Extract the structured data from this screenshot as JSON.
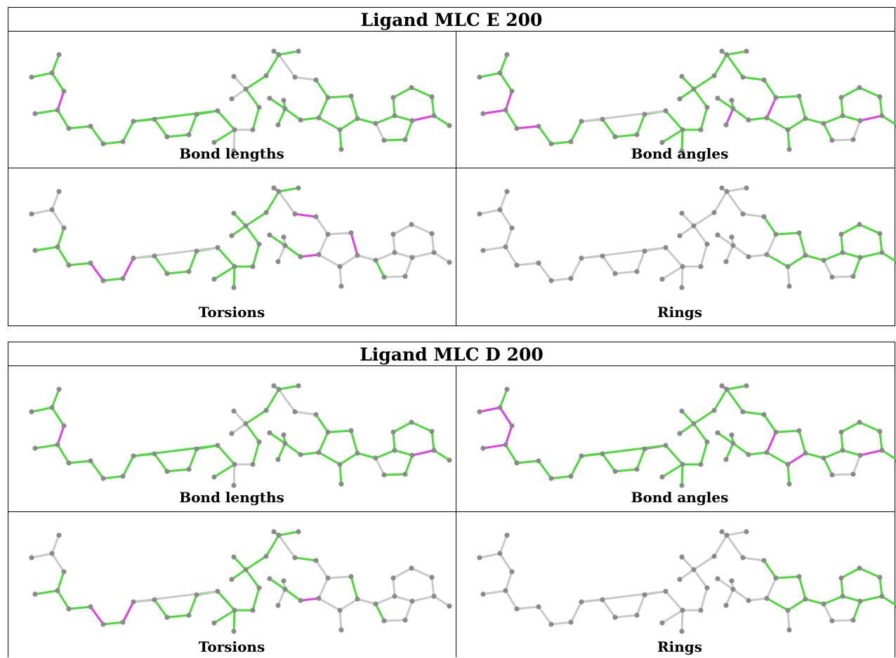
{
  "colors": {
    "ok": "#4bd93b",
    "outlier": "#e23ee5",
    "neutral": "#c9c9c9",
    "atom": "#8a8a8a"
  },
  "tables": [
    {
      "title": "Ligand MLC E 200",
      "panels": [
        {
          "caption": "Bond lengths"
        },
        {
          "caption": "Bond angles"
        },
        {
          "caption": "Torsions"
        },
        {
          "caption": "Rings"
        }
      ]
    },
    {
      "title": "Ligand MLC D 200",
      "panels": [
        {
          "caption": "Bond lengths"
        },
        {
          "caption": "Bond angles"
        },
        {
          "caption": "Torsions"
        },
        {
          "caption": "Rings"
        }
      ]
    }
  ]
}
